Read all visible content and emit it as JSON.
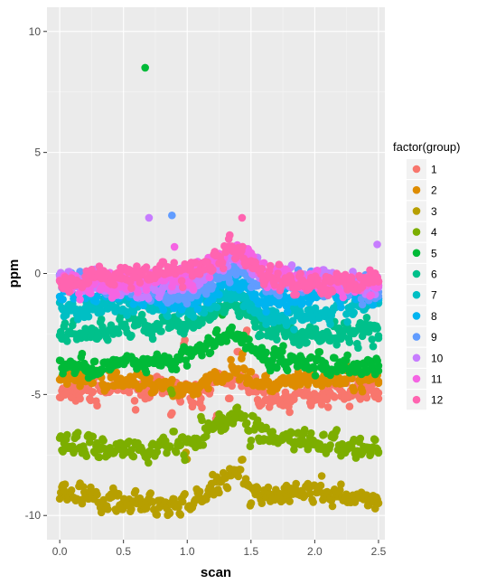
{
  "chart_data": {
    "type": "scatter",
    "title": "",
    "xlabel": "scan",
    "ylabel": "ppm",
    "xlim": [
      -0.1,
      2.55
    ],
    "ylim": [
      -11,
      11
    ],
    "x_ticks": [
      0.0,
      0.5,
      1.0,
      1.5,
      2.0,
      2.5
    ],
    "x_tick_labels": [
      "0.0",
      "0.5",
      "1.0",
      "1.5",
      "2.0",
      "2.5"
    ],
    "y_ticks": [
      -10,
      -5,
      0,
      5,
      10
    ],
    "y_tick_labels": [
      "-10",
      "-5",
      "0",
      "5",
      "10"
    ],
    "grid": true,
    "legend_position": "right",
    "legend_title": "factor(group)",
    "series": [
      {
        "name": "1",
        "color": "#F8766D",
        "baseline": -5.0
      },
      {
        "name": "2",
        "color": "#DE8C00",
        "baseline": -4.6
      },
      {
        "name": "3",
        "color": "#B79F00",
        "baseline": -9.3
      },
      {
        "name": "4",
        "color": "#7CAE00",
        "baseline": -7.0
      },
      {
        "name": "5",
        "color": "#00BA38",
        "baseline": -3.6
      },
      {
        "name": "6",
        "color": "#00C08B",
        "baseline": -2.3
      },
      {
        "name": "7",
        "color": "#00BFC4",
        "baseline": -1.5
      },
      {
        "name": "8",
        "color": "#00B4F0",
        "baseline": -1.0
      },
      {
        "name": "9",
        "color": "#619CFF",
        "baseline": -0.6
      },
      {
        "name": "10",
        "color": "#C77CFF",
        "baseline": -0.35
      },
      {
        "name": "11",
        "color": "#F564E3",
        "baseline": -0.2
      },
      {
        "name": "12",
        "color": "#FF64B0",
        "baseline": -0.1
      }
    ],
    "notable_points": [
      {
        "series": "5",
        "x": 0.67,
        "y": 8.5
      },
      {
        "series": "9",
        "x": 0.88,
        "y": 2.4
      },
      {
        "series": "10",
        "x": 0.7,
        "y": 2.3
      },
      {
        "series": "10",
        "x": 2.49,
        "y": 1.2
      },
      {
        "series": "11",
        "x": 0.9,
        "y": 1.1
      },
      {
        "series": "12",
        "x": 1.43,
        "y": 2.3
      }
    ]
  }
}
